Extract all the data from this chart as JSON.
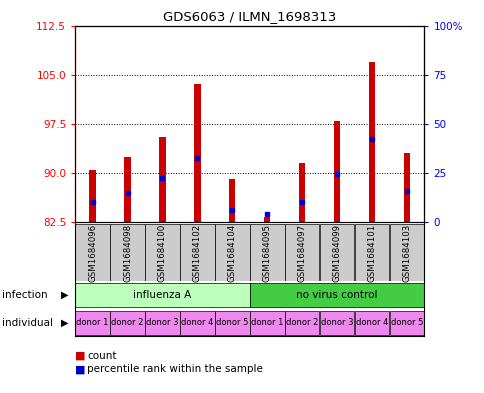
{
  "title": "GDS6063 / ILMN_1698313",
  "samples": [
    "GSM1684096",
    "GSM1684098",
    "GSM1684100",
    "GSM1684102",
    "GSM1684104",
    "GSM1684095",
    "GSM1684097",
    "GSM1684099",
    "GSM1684101",
    "GSM1684103"
  ],
  "bar_heights": [
    90.5,
    92.5,
    95.5,
    103.5,
    89.0,
    83.2,
    91.5,
    98.0,
    107.0,
    93.0
  ],
  "blue_marker_y": [
    85.5,
    87.0,
    89.2,
    92.3,
    84.3,
    83.8,
    85.5,
    89.8,
    95.2,
    87.2
  ],
  "bar_bottom": 82.5,
  "ylim_left": [
    82.5,
    112.5
  ],
  "yticks_left": [
    82.5,
    90.0,
    97.5,
    105.0,
    112.5
  ],
  "ylim_right": [
    0,
    100
  ],
  "yticks_right": [
    0,
    25,
    50,
    75,
    100
  ],
  "bar_color": "#cc0000",
  "blue_color": "#0000cc",
  "bar_width": 0.18,
  "infection_group1_color": "#bbffbb",
  "infection_group2_color": "#44cc44",
  "individual_color": "#ee88ee",
  "sample_bg_color": "#cccccc",
  "legend_count_color": "#cc0000",
  "legend_percentile_color": "#0000cc"
}
